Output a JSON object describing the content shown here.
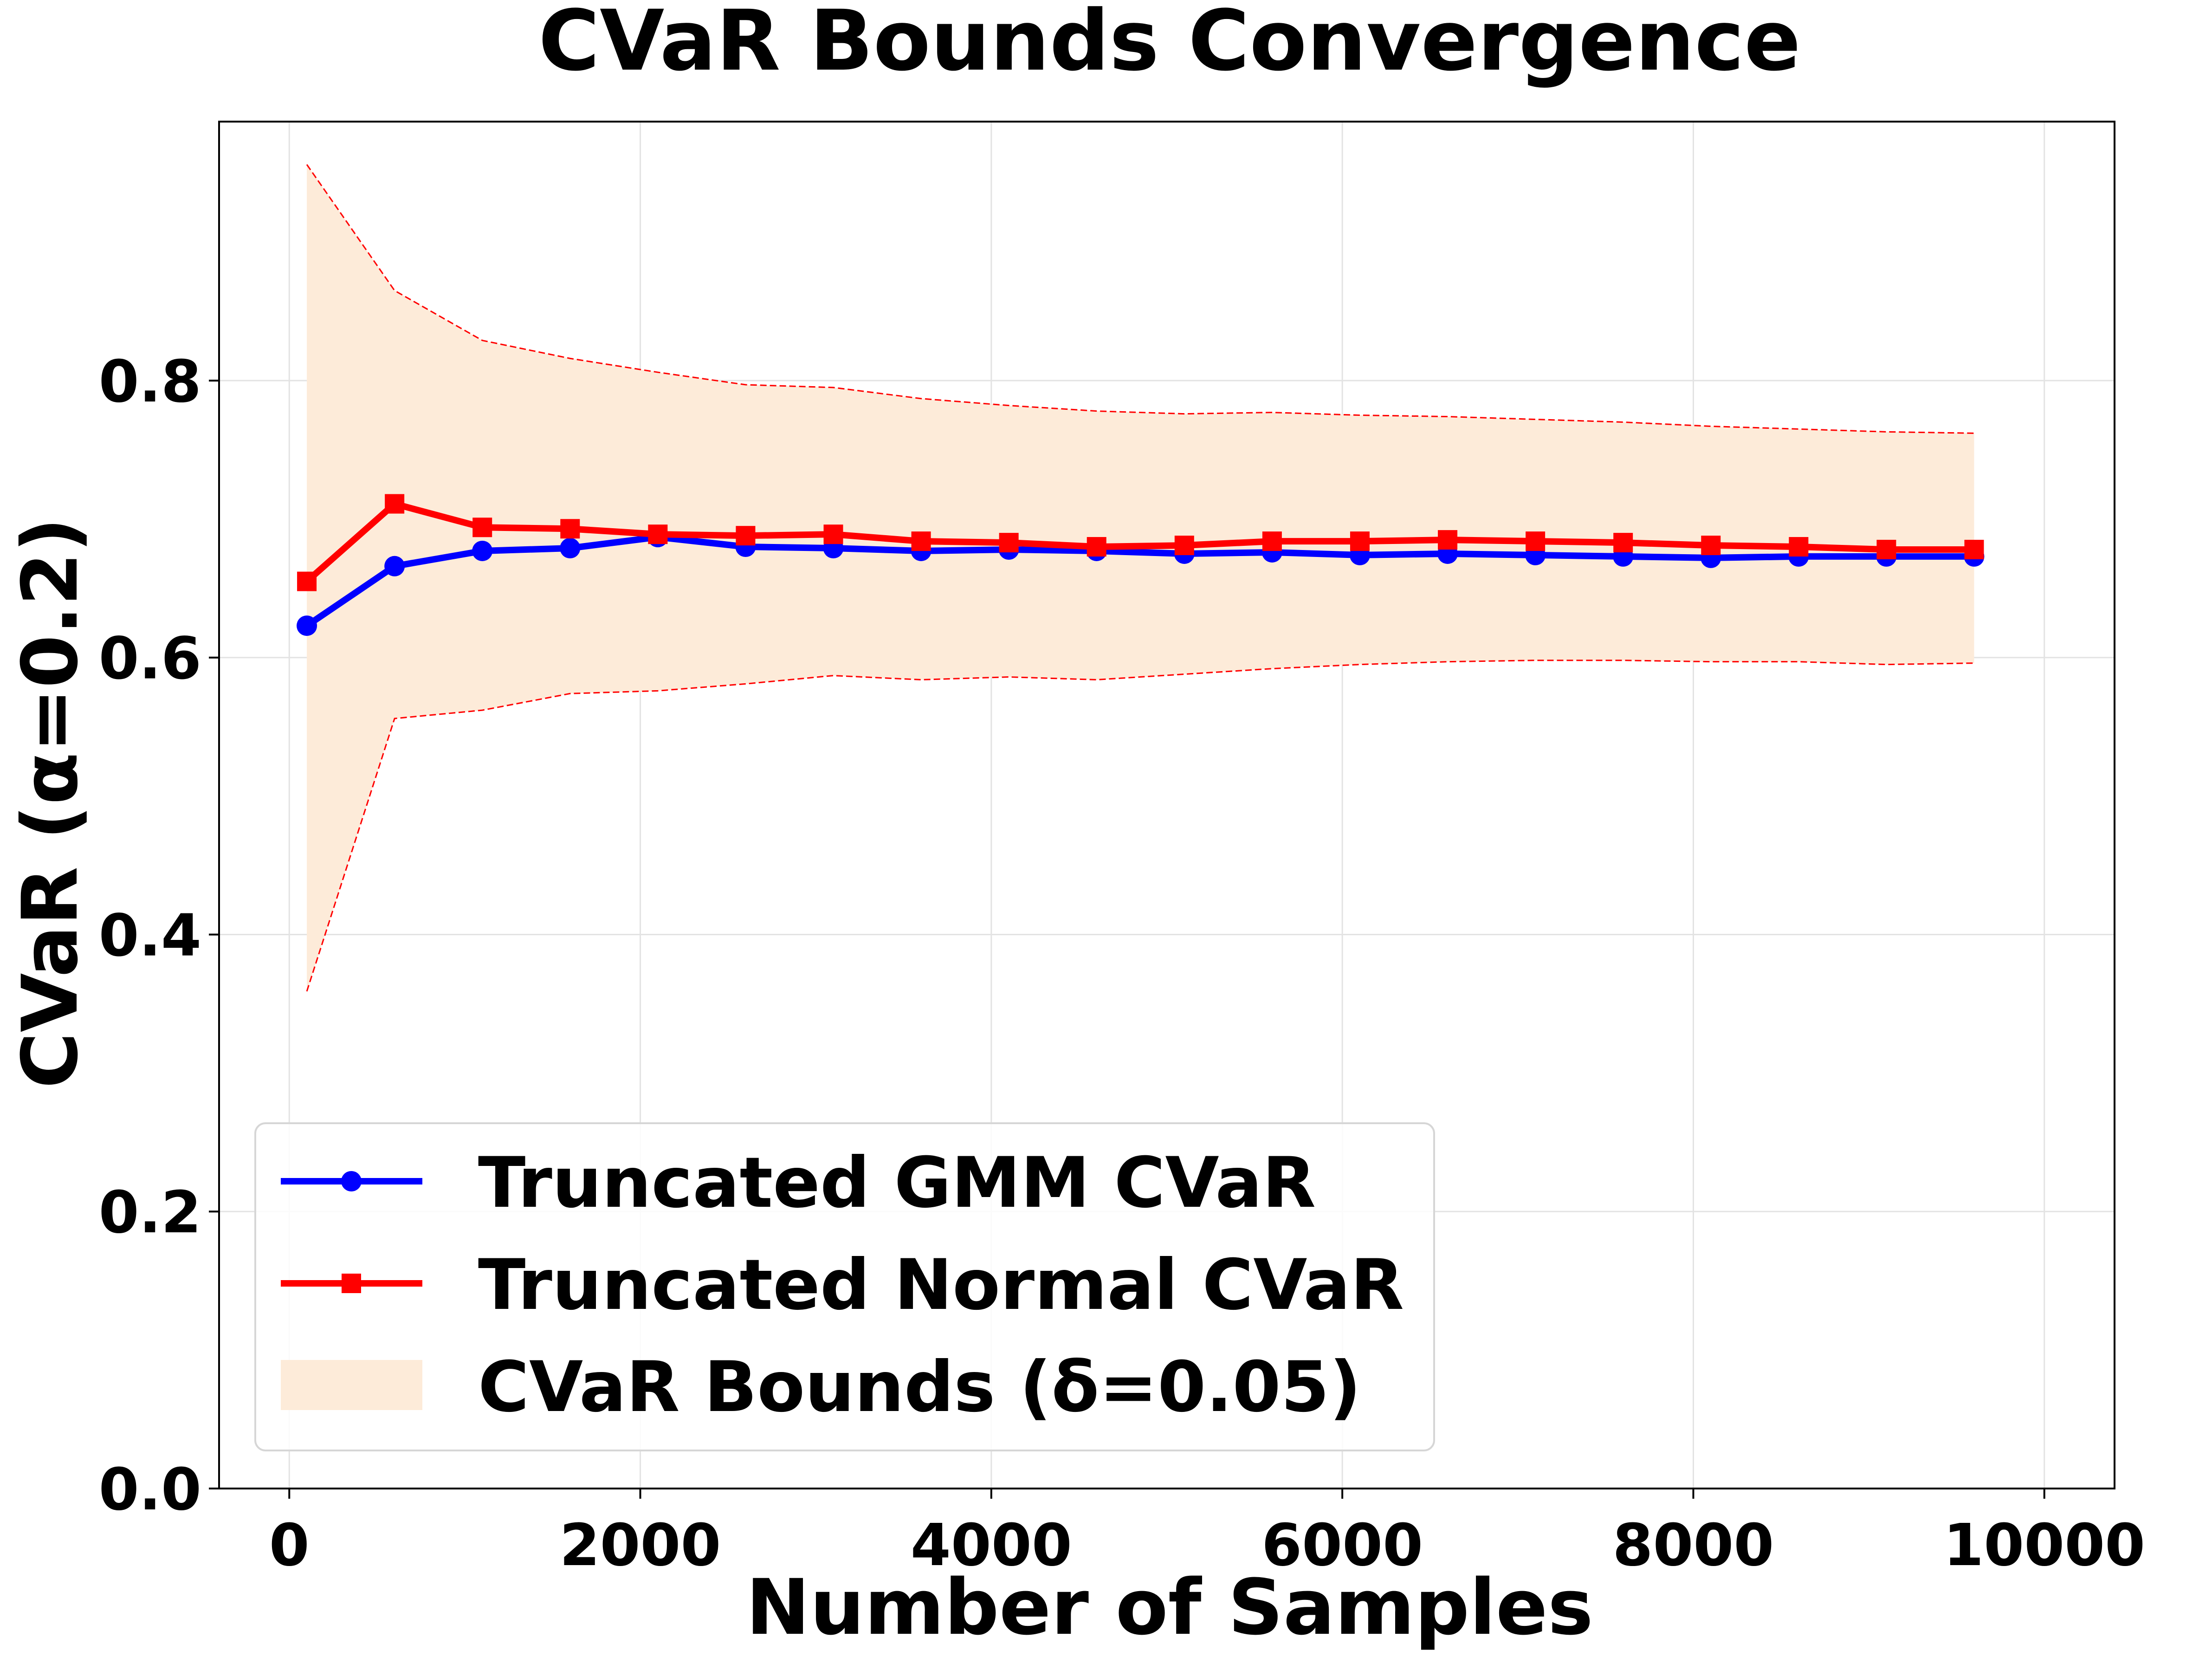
{
  "chart_data": {
    "type": "line",
    "title": "CVaR Bounds Convergence",
    "xlabel": "Number of Samples",
    "ylabel": "CVaR (α=0.2)",
    "xlim": [
      -400,
      10400
    ],
    "ylim": [
      0.0,
      0.987
    ],
    "xticks": [
      0,
      2000,
      4000,
      6000,
      8000,
      10000
    ],
    "xtick_labels": [
      "0",
      "2000",
      "4000",
      "6000",
      "8000",
      "10000"
    ],
    "yticks": [
      0.0,
      0.2,
      0.4,
      0.6,
      0.8
    ],
    "ytick_labels": [
      "0.0",
      "0.2",
      "0.4",
      "0.6",
      "0.8"
    ],
    "grid": true,
    "legend_position": "bottom-left",
    "x": [
      100,
      600,
      1100,
      1600,
      2100,
      2600,
      3100,
      3600,
      4100,
      4600,
      5100,
      5600,
      6100,
      6600,
      7100,
      7600,
      8100,
      8600,
      9100,
      9600
    ],
    "series": [
      {
        "name": "Truncated GMM CVaR",
        "color": "#0000ff",
        "marker": "circle",
        "values": [
          0.623,
          0.666,
          0.677,
          0.679,
          0.687,
          0.68,
          0.679,
          0.677,
          0.678,
          0.677,
          0.675,
          0.676,
          0.674,
          0.675,
          0.674,
          0.673,
          0.672,
          0.673,
          0.673,
          0.673
        ]
      },
      {
        "name": "Truncated Normal CVaR",
        "color": "#ff0000",
        "marker": "square",
        "values": [
          0.655,
          0.711,
          0.694,
          0.693,
          0.689,
          0.688,
          0.689,
          0.684,
          0.683,
          0.68,
          0.681,
          0.684,
          0.684,
          0.685,
          0.684,
          0.683,
          0.681,
          0.68,
          0.678,
          0.678
        ]
      }
    ],
    "bounds": {
      "name": "CVaR Bounds (δ=0.05)",
      "fill_color": "#fdebd9",
      "line_color": "#ff0000",
      "upper": [
        0.956,
        0.865,
        0.829,
        0.816,
        0.806,
        0.797,
        0.795,
        0.787,
        0.782,
        0.778,
        0.776,
        0.777,
        0.775,
        0.774,
        0.772,
        0.77,
        0.767,
        0.765,
        0.763,
        0.762
      ],
      "lower": [
        0.359,
        0.556,
        0.562,
        0.574,
        0.576,
        0.581,
        0.587,
        0.584,
        0.586,
        0.584,
        0.588,
        0.592,
        0.595,
        0.597,
        0.598,
        0.598,
        0.597,
        0.597,
        0.595,
        0.596
      ]
    }
  }
}
